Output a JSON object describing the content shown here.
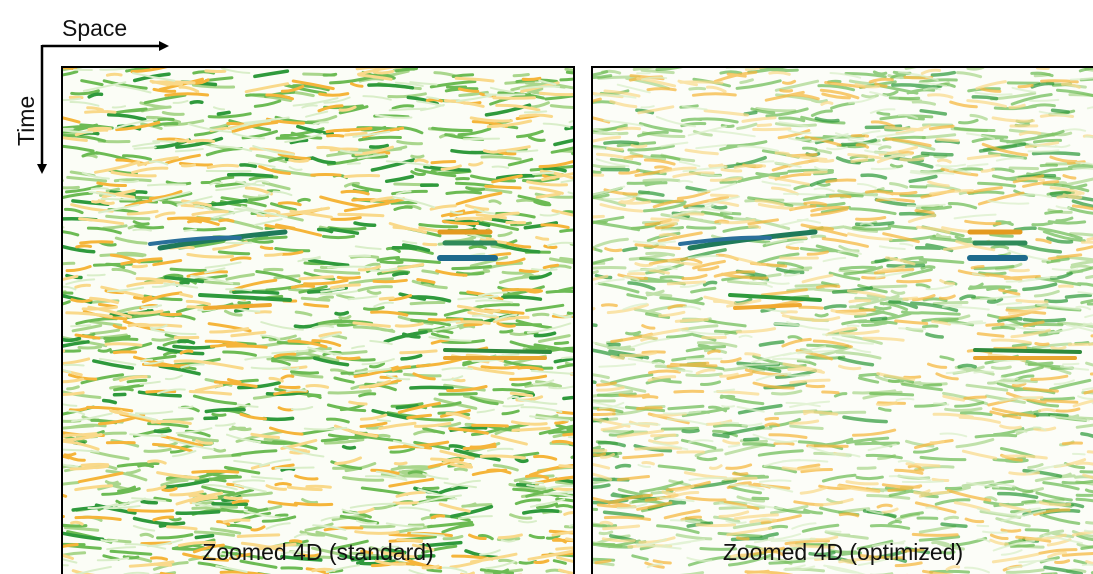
{
  "axes": {
    "x_label": "Space",
    "y_label": "Time"
  },
  "panels": [
    {
      "caption": "Zoomed 4D (standard)"
    },
    {
      "caption": "Zoomed 4D (optimized)"
    }
  ]
}
